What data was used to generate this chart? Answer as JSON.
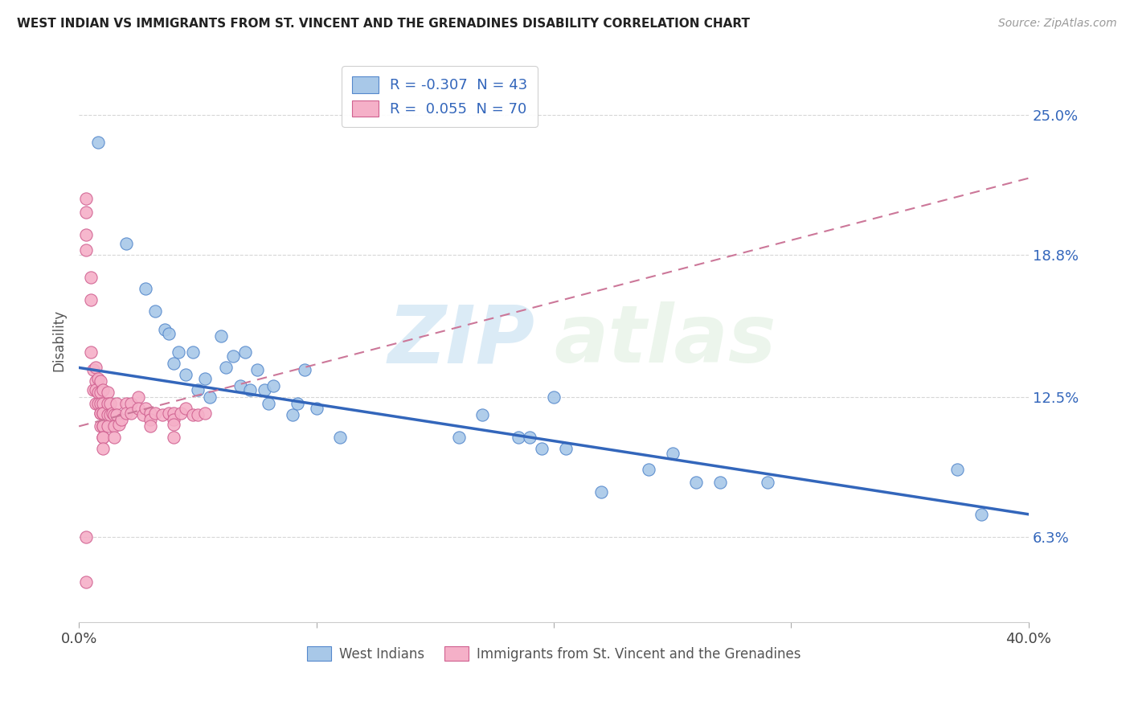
{
  "title": "WEST INDIAN VS IMMIGRANTS FROM ST. VINCENT AND THE GRENADINES DISABILITY CORRELATION CHART",
  "source": "Source: ZipAtlas.com",
  "ylabel": "Disability",
  "ytick_labels": [
    "6.3%",
    "12.5%",
    "18.8%",
    "25.0%"
  ],
  "ytick_values": [
    0.063,
    0.125,
    0.188,
    0.25
  ],
  "xlim": [
    0.0,
    0.4
  ],
  "ylim": [
    0.025,
    0.275
  ],
  "legend_blue_r": "-0.307",
  "legend_blue_n": "43",
  "legend_pink_r": "0.055",
  "legend_pink_n": "70",
  "legend_label_blue": "West Indians",
  "legend_label_pink": "Immigrants from St. Vincent and the Grenadines",
  "blue_scatter_x": [
    0.008,
    0.02,
    0.028,
    0.032,
    0.036,
    0.038,
    0.04,
    0.042,
    0.045,
    0.048,
    0.05,
    0.053,
    0.055,
    0.06,
    0.062,
    0.065,
    0.068,
    0.07,
    0.072,
    0.075,
    0.078,
    0.08,
    0.082,
    0.09,
    0.092,
    0.095,
    0.1,
    0.11,
    0.16,
    0.17,
    0.185,
    0.19,
    0.195,
    0.2,
    0.205,
    0.22,
    0.24,
    0.25,
    0.26,
    0.27,
    0.29,
    0.37,
    0.38
  ],
  "blue_scatter_y": [
    0.238,
    0.193,
    0.173,
    0.163,
    0.155,
    0.153,
    0.14,
    0.145,
    0.135,
    0.145,
    0.128,
    0.133,
    0.125,
    0.152,
    0.138,
    0.143,
    0.13,
    0.145,
    0.128,
    0.137,
    0.128,
    0.122,
    0.13,
    0.117,
    0.122,
    0.137,
    0.12,
    0.107,
    0.107,
    0.117,
    0.107,
    0.107,
    0.102,
    0.125,
    0.102,
    0.083,
    0.093,
    0.1,
    0.087,
    0.087,
    0.087,
    0.093,
    0.073
  ],
  "pink_scatter_x": [
    0.003,
    0.003,
    0.003,
    0.003,
    0.003,
    0.005,
    0.005,
    0.005,
    0.006,
    0.006,
    0.007,
    0.007,
    0.007,
    0.007,
    0.008,
    0.008,
    0.008,
    0.009,
    0.009,
    0.009,
    0.009,
    0.009,
    0.009,
    0.01,
    0.01,
    0.01,
    0.01,
    0.01,
    0.01,
    0.01,
    0.01,
    0.01,
    0.012,
    0.012,
    0.012,
    0.012,
    0.013,
    0.013,
    0.014,
    0.015,
    0.015,
    0.015,
    0.016,
    0.016,
    0.017,
    0.018,
    0.02,
    0.02,
    0.022,
    0.022,
    0.025,
    0.025,
    0.027,
    0.028,
    0.03,
    0.03,
    0.03,
    0.032,
    0.035,
    0.038,
    0.04,
    0.04,
    0.04,
    0.04,
    0.043,
    0.045,
    0.048,
    0.05,
    0.053,
    0.003
  ],
  "pink_scatter_y": [
    0.213,
    0.207,
    0.197,
    0.19,
    0.063,
    0.145,
    0.178,
    0.168,
    0.137,
    0.128,
    0.138,
    0.132,
    0.128,
    0.122,
    0.133,
    0.127,
    0.122,
    0.132,
    0.127,
    0.122,
    0.118,
    0.118,
    0.112,
    0.128,
    0.122,
    0.118,
    0.118,
    0.112,
    0.112,
    0.107,
    0.107,
    0.102,
    0.127,
    0.122,
    0.117,
    0.112,
    0.122,
    0.117,
    0.118,
    0.117,
    0.112,
    0.107,
    0.122,
    0.117,
    0.113,
    0.115,
    0.122,
    0.118,
    0.122,
    0.118,
    0.125,
    0.12,
    0.117,
    0.12,
    0.118,
    0.115,
    0.112,
    0.118,
    0.117,
    0.118,
    0.118,
    0.115,
    0.113,
    0.107,
    0.118,
    0.12,
    0.117,
    0.117,
    0.118,
    0.043
  ],
  "blue_line_x": [
    0.0,
    0.4
  ],
  "blue_line_y": [
    0.138,
    0.073
  ],
  "pink_line_x": [
    0.0,
    0.4
  ],
  "pink_line_y": [
    0.112,
    0.222
  ],
  "blue_color": "#a8c8e8",
  "pink_color": "#f5b0c8",
  "blue_scatter_edge": "#5588cc",
  "pink_scatter_edge": "#d06090",
  "blue_line_color": "#3366bb",
  "pink_line_color": "#cc7799",
  "watermark_zip": "ZIP",
  "watermark_atlas": "atlas",
  "background_color": "#ffffff",
  "grid_color": "#cccccc"
}
